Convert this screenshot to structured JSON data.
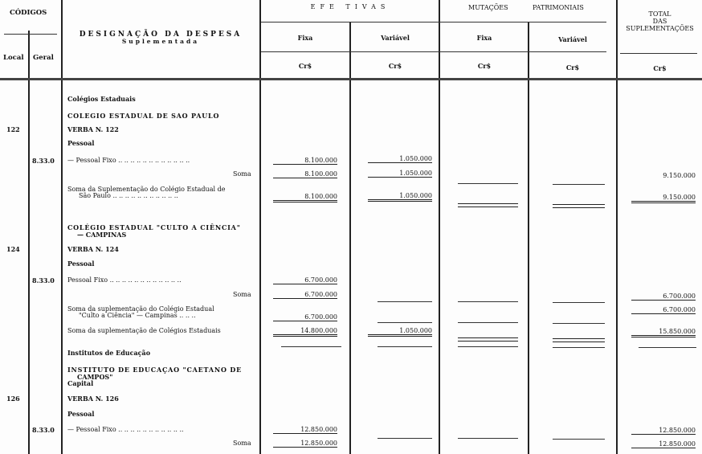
{
  "header": {
    "codigos": "CÓDIGOS",
    "local": "Local",
    "geral": "Geral",
    "designacao": "DESIGNAÇÃO DA DESPESA",
    "suplementada": "Suplementada",
    "efetivas": "EFE  TIVAS",
    "mutacoes": "MUTAÇÕES",
    "patrimoniais": "PATRIMONIAIS",
    "fixa": "Fixa",
    "variavel": "Variável",
    "total": "TOTAL",
    "das": "DAS",
    "suplementacoes": "SUPLEMENTAÇÕES",
    "currency": "Cr$"
  },
  "rows": {
    "r1": "Colégios Estaduais",
    "r2": "COLEGIO ESTADUAL DE SAO PAULO",
    "r3_local": "122",
    "r3": "VERBA N. 122",
    "r4": "Pessoal",
    "r5_geral": "8.33.0",
    "r5": "— Pessoal Fixo .. .. .. .. .. .. .. .. .. .. .. ..",
    "r5_fixa": "8.100.000",
    "r5_var": "1.050.000",
    "r6": "Soma",
    "r6_fixa": "8.100.000",
    "r6_var": "1.050.000",
    "r6_total": "9.150.000",
    "r7a": "Soma da Suplementação do Colégio Estadual de",
    "r7b": "São Paulo .. .. .. .. .. .. .. .. .. .. ..",
    "r7_fixa": "8.100.000",
    "r7_var": "1.050.000",
    "r7_total": "9.150.000",
    "r8a": "COLÉGIO ESTADUAL \"CULTO A CIÊNCIA\"",
    "r8b": "— CAMPINAS",
    "r9_local": "124",
    "r9": "VERBA N. 124",
    "r10": "Pessoal",
    "r11_geral": "8.33.0",
    "r11": "Pessoal Fixo .. .. .. .. .. .. .. .. .. .. .. ..",
    "r11_fixa": "6.700.000",
    "r12": "Soma",
    "r12_fixa": "6.700.000",
    "r12_total": "6.700.000",
    "r13a": "Soma da suplementação do Colégio Estadual",
    "r13b": "\"Culto a Ciência\" — Campinas .. .. ..",
    "r13_fixa": "6.700.000",
    "r13_total": "6.700.000",
    "r14": "Soma da suplementação de Colégios  Estaduais",
    "r14_fixa": "14.800.000",
    "r14_var": "1.050.000",
    "r14_total": "15.850.000",
    "r15": "Institutos de Educação",
    "r16a": "INSTITUTO DE EDUCAÇAO \"CAETANO DE",
    "r16b": "CAMPOS\"",
    "r16c": "Capital",
    "r17_local": "126",
    "r17": "VERBA N. 126",
    "r18": "Pessoal",
    "r19_geral": "8.33.0",
    "r19": "— Pessoal Fixo .. .. .. .. .. .. .. .. .. .. ..",
    "r19_fixa": "12.850.000",
    "r19_total": "12.850.000",
    "r20": "Soma",
    "r20_fixa": "12.850.000",
    "r20_total": "12.850.000"
  }
}
